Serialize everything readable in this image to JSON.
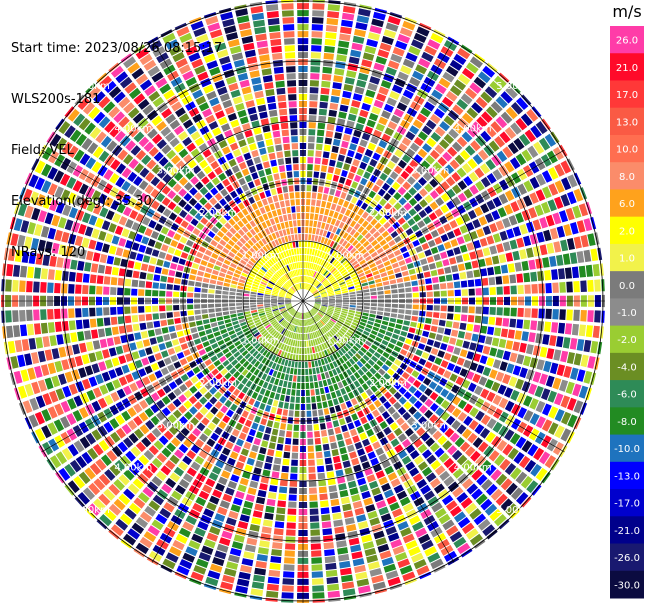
{
  "header": {
    "start_time": "Start time: 2023/08/26 08:15:17",
    "instrument": "WLS200s-181",
    "field": "Field: VEL",
    "elevation": "Elevation(deg): 35.30",
    "nrays": "NRays: 120"
  },
  "chart_data": {
    "type": "heatmap",
    "subtype": "polar-ppi",
    "nrays": 120,
    "ring_labels": [
      "1.00km",
      "2.00km",
      "3.00km",
      "4.00km",
      "5.00km"
    ],
    "colorbar": {
      "unit": "m/s",
      "bins": [
        {
          "label": "26.0",
          "color": "#ff3ca8"
        },
        {
          "label": "21.0",
          "color": "#ff0a2a"
        },
        {
          "label": "17.0",
          "color": "#ff3838"
        },
        {
          "label": "13.0",
          "color": "#fa5a44"
        },
        {
          "label": "10.0",
          "color": "#ff6e50"
        },
        {
          "label": "8.0",
          "color": "#fb8c6a"
        },
        {
          "label": "6.0",
          "color": "#ffa21c"
        },
        {
          "label": "2.0",
          "color": "#ffff00"
        },
        {
          "label": "1.0",
          "color": "#f2f24a"
        },
        {
          "label": "0.0",
          "color": "#7b7b7b"
        },
        {
          "label": "-1.0",
          "color": "#8c8c8c"
        },
        {
          "label": "-2.0",
          "color": "#9acd32"
        },
        {
          "label": "-4.0",
          "color": "#6b8e23"
        },
        {
          "label": "-6.0",
          "color": "#2e8b57"
        },
        {
          "label": "-8.0",
          "color": "#228b22"
        },
        {
          "label": "-10.0",
          "color": "#1e73be"
        },
        {
          "label": "-13.0",
          "color": "#0000ff"
        },
        {
          "label": "-17.0",
          "color": "#0000cd"
        },
        {
          "label": "-21.0",
          "color": "#00008b"
        },
        {
          "label": "-26.0",
          "color": "#191970"
        },
        {
          "label": "-30.0",
          "color": "#0b0b40"
        }
      ]
    },
    "near_field_pattern": {
      "north": "yellow-orange (positive)",
      "south": "green (negative)",
      "outer": "mixed noise"
    },
    "grid": true
  }
}
